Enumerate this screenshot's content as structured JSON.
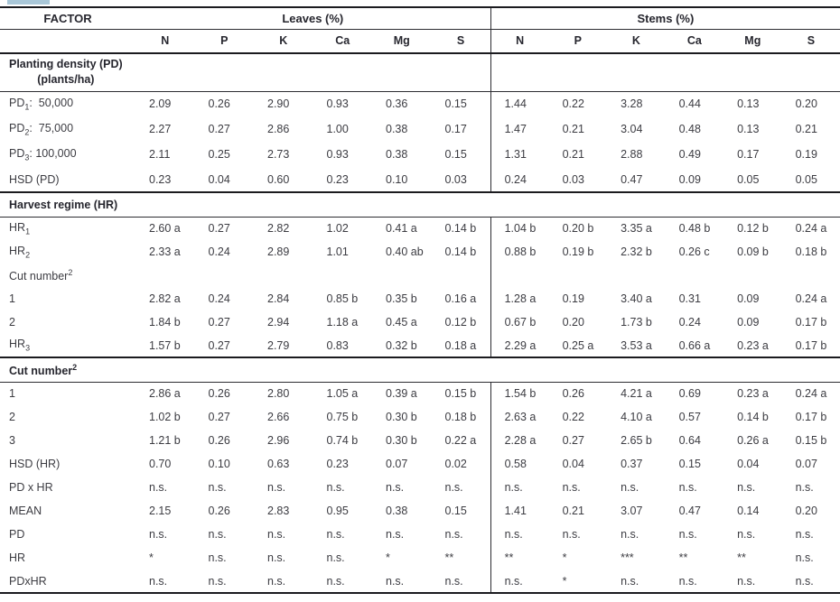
{
  "page": {
    "tab_remnant_color": "#a9c7d8"
  },
  "table": {
    "factor_header": "FACTOR",
    "groups": [
      {
        "label": "Leaves (%)"
      },
      {
        "label": "Stems (%)"
      }
    ],
    "nutrients": [
      "N",
      "P",
      "K",
      "Ca",
      "Mg",
      "S"
    ],
    "rows": [
      {
        "kind": "label",
        "label": [
          [
            "t",
            "Planting density (PD)"
          ],
          [
            "br",
            ""
          ],
          [
            "t",
            "(plants/ha)"
          ]
        ]
      },
      {
        "kind": "data",
        "label": [
          [
            "t",
            "PD"
          ],
          [
            "sub",
            "1"
          ],
          [
            "t",
            ":  50,000"
          ]
        ],
        "cells": [
          "2.09",
          "0.26",
          "2.90",
          "0.93",
          "0.36",
          "0.15",
          "1.44",
          "0.22",
          "3.28",
          "0.44",
          "0.13",
          "0.20"
        ]
      },
      {
        "kind": "data",
        "label": [
          [
            "t",
            "PD"
          ],
          [
            "sub",
            "2"
          ],
          [
            "t",
            ":  75,000"
          ]
        ],
        "cells": [
          "2.27",
          "0.27",
          "2.86",
          "1.00",
          "0.38",
          "0.17",
          "1.47",
          "0.21",
          "3.04",
          "0.48",
          "0.13",
          "0.21"
        ]
      },
      {
        "kind": "data",
        "label": [
          [
            "t",
            "PD"
          ],
          [
            "sub",
            "3"
          ],
          [
            "t",
            ": 100,000"
          ]
        ],
        "cells": [
          "2.11",
          "0.25",
          "2.73",
          "0.93",
          "0.38",
          "0.15",
          "1.31",
          "0.21",
          "2.88",
          "0.49",
          "0.17",
          "0.19"
        ]
      },
      {
        "kind": "data",
        "label": [
          [
            "t",
            "HSD (PD)"
          ]
        ],
        "cells": [
          "0.23",
          "0.04",
          "0.60",
          "0.23",
          "0.10",
          "0.03",
          "0.24",
          "0.03",
          "0.47",
          "0.09",
          "0.05",
          "0.05"
        ]
      },
      {
        "kind": "section",
        "label": [
          [
            "t",
            "Harvest regime (HR)"
          ]
        ]
      },
      {
        "kind": "data",
        "label": [
          [
            "t",
            "HR"
          ],
          [
            "sub",
            "1"
          ]
        ],
        "cells": [
          "2.60 a",
          "0.27",
          "2.82",
          "1.02",
          "0.41 a",
          "0.14 b",
          "1.04 b",
          "0.20 b",
          "3.35 a",
          "0.48 b",
          "0.12 b",
          "0.24 a"
        ]
      },
      {
        "kind": "data",
        "label": [
          [
            "t",
            "HR"
          ],
          [
            "sub",
            "2"
          ]
        ],
        "cells": [
          "2.33 a",
          "0.24",
          "2.89",
          "1.01",
          "0.40 ab",
          "0.14 b",
          "0.88 b",
          "0.19 b",
          "2.32 b",
          "0.26 c",
          "0.09 b",
          "0.18 b"
        ]
      },
      {
        "kind": "sublabel",
        "label": [
          [
            "t",
            "Cut number"
          ],
          [
            "sup",
            "2"
          ]
        ]
      },
      {
        "kind": "data",
        "label": [
          [
            "t",
            "1"
          ]
        ],
        "cells": [
          "2.82 a",
          "0.24",
          "2.84",
          "0.85 b",
          "0.35 b",
          "0.16 a",
          "1.28 a",
          "0.19",
          "3.40 a",
          "0.31",
          "0.09",
          "0.24 a"
        ]
      },
      {
        "kind": "data",
        "label": [
          [
            "t",
            "2"
          ]
        ],
        "cells": [
          "1.84 b",
          "0.27",
          "2.94",
          "1.18 a",
          "0.45 a",
          "0.12 b",
          "0.67 b",
          "0.20",
          "1.73 b",
          "0.24",
          "0.09",
          "0.17 b"
        ]
      },
      {
        "kind": "data",
        "label": [
          [
            "t",
            "HR"
          ],
          [
            "sub",
            "3"
          ]
        ],
        "cells": [
          "1.57 b",
          "0.27",
          "2.79",
          "0.83",
          "0.32 b",
          "0.18 a",
          "2.29 a",
          "0.25 a",
          "3.53 a",
          "0.66 a",
          "0.23 a",
          "0.17 b"
        ]
      },
      {
        "kind": "section",
        "label": [
          [
            "t",
            "Cut number"
          ],
          [
            "sup",
            "2"
          ]
        ]
      },
      {
        "kind": "data",
        "label": [
          [
            "t",
            "1"
          ]
        ],
        "cells": [
          "2.86 a",
          "0.26",
          "2.80",
          "1.05 a",
          "0.39 a",
          "0.15 b",
          "1.54 b",
          "0.26",
          "4.21 a",
          "0.69",
          "0.23 a",
          "0.24 a"
        ]
      },
      {
        "kind": "data",
        "label": [
          [
            "t",
            "2"
          ]
        ],
        "cells": [
          "1.02 b",
          "0.27",
          "2.66",
          "0.75 b",
          "0.30 b",
          "0.18 b",
          "2.63 a",
          "0.22",
          "4.10 a",
          "0.57",
          "0.14 b",
          "0.17 b"
        ]
      },
      {
        "kind": "data",
        "label": [
          [
            "t",
            "3"
          ]
        ],
        "cells": [
          "1.21 b",
          "0.26",
          "2.96",
          "0.74 b",
          "0.30 b",
          "0.22 a",
          "2.28 a",
          "0.27",
          "2.65 b",
          "0.64",
          "0.26 a",
          "0.15 b"
        ]
      },
      {
        "kind": "data",
        "label": [
          [
            "t",
            "HSD (HR)"
          ]
        ],
        "cells": [
          "0.70",
          "0.10",
          "0.63",
          "0.23",
          "0.07",
          "0.02",
          "0.58",
          "0.04",
          "0.37",
          "0.15",
          "0.04",
          "0.07"
        ]
      },
      {
        "kind": "data",
        "label": [
          [
            "t",
            "PD x HR"
          ]
        ],
        "cells": [
          "n.s.",
          "n.s.",
          "n.s.",
          "n.s.",
          "n.s.",
          "n.s.",
          "n.s.",
          "n.s.",
          "n.s.",
          "n.s.",
          "n.s.",
          "n.s."
        ]
      },
      {
        "kind": "data",
        "label": [
          [
            "t",
            "MEAN"
          ]
        ],
        "cells": [
          "2.15",
          "0.26",
          "2.83",
          "0.95",
          "0.38",
          "0.15",
          "1.41",
          "0.21",
          "3.07",
          "0.47",
          "0.14",
          "0.20"
        ]
      },
      {
        "kind": "data",
        "label": [
          [
            "t",
            "PD"
          ]
        ],
        "cells": [
          "n.s.",
          "n.s.",
          "n.s.",
          "n.s.",
          "n.s.",
          "n.s.",
          "n.s.",
          "n.s.",
          "n.s.",
          "n.s.",
          "n.s.",
          "n.s."
        ]
      },
      {
        "kind": "data",
        "label": [
          [
            "t",
            "HR"
          ]
        ],
        "cells": [
          "*",
          "n.s.",
          "n.s.",
          "n.s.",
          "*",
          "**",
          "**",
          "*",
          "***",
          "**",
          "**",
          "n.s."
        ]
      },
      {
        "kind": "data",
        "label": [
          [
            "t",
            "PDxHR"
          ]
        ],
        "cells": [
          "n.s.",
          "n.s.",
          "n.s.",
          "n.s.",
          "n.s.",
          "n.s.",
          "n.s.",
          "*",
          "n.s.",
          "n.s.",
          "n.s.",
          "n.s."
        ]
      }
    ]
  }
}
